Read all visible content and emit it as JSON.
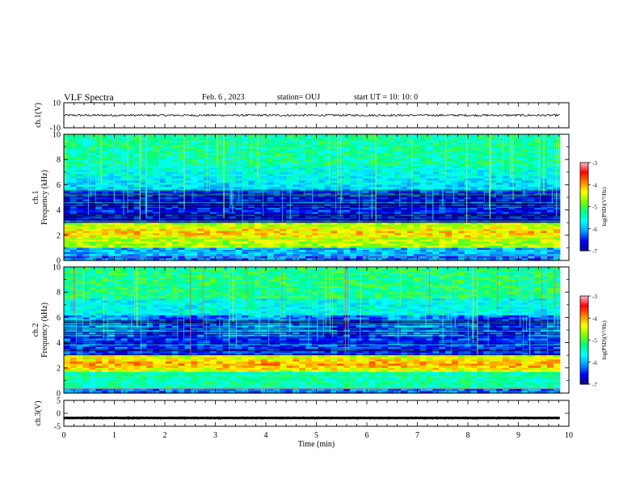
{
  "header": {
    "title": "VLF Spectra",
    "date": "Feb. 6 , 2023",
    "station": "station= OUJ",
    "start": "start UT =   10: 10: 0"
  },
  "chart_data": [
    {
      "type": "line",
      "name": "waveform-ch1",
      "ylabel": "ch.1(V)",
      "ylim": [
        -10,
        10
      ],
      "yticks": [
        10,
        -10
      ],
      "xlim": [
        0,
        10
      ],
      "x_extent": [
        0,
        9.82
      ],
      "level": 0,
      "noise_amplitude": 0.8
    },
    {
      "type": "heatmap",
      "name": "spectrogram-ch1",
      "ylabel": "ch.1\nFrequency (kHz)",
      "ylim": [
        0,
        10
      ],
      "yticks": [
        0,
        2,
        4,
        6,
        8,
        10
      ],
      "xlim": [
        0,
        10
      ],
      "x_extent": [
        0,
        9.82
      ],
      "colorbar": {
        "label": "log(PSD)(V²/Hz)",
        "ticks": [
          -3,
          -4,
          -5,
          -6,
          -7
        ],
        "range": [
          -7,
          -3
        ]
      }
    },
    {
      "type": "heatmap",
      "name": "spectrogram-ch2",
      "ylabel": "ch.2\nFrequency (kHz)",
      "ylim": [
        0,
        10
      ],
      "yticks": [
        0,
        2,
        4,
        6,
        8,
        10
      ],
      "xlim": [
        0,
        10
      ],
      "x_extent": [
        0,
        9.82
      ],
      "colorbar": {
        "label": "log(PSD)(V²/Hz)",
        "ticks": [
          -3,
          -4,
          -5,
          -6,
          -7
        ],
        "range": [
          -7,
          -3
        ]
      }
    },
    {
      "type": "line",
      "name": "waveform-ch3",
      "ylabel": "ch.3(V)",
      "ylim": [
        -5,
        5
      ],
      "yticks": [
        5,
        0,
        -5
      ],
      "xlim": [
        0,
        10
      ],
      "x_extent": [
        0,
        9.82
      ],
      "level": -1.8,
      "noise_amplitude": 0.35
    }
  ],
  "xaxis": {
    "label": "Time (min)",
    "ticks": [
      0,
      1,
      2,
      3,
      4,
      5,
      6,
      7,
      8,
      9,
      10
    ]
  },
  "colors": {
    "colormap": [
      "#0a0a8a",
      "#0000ff",
      "#00a0ff",
      "#00ffff",
      "#00ff80",
      "#80ff00",
      "#ffff00",
      "#ff8000",
      "#ff0000",
      "#ffc0d0"
    ]
  }
}
